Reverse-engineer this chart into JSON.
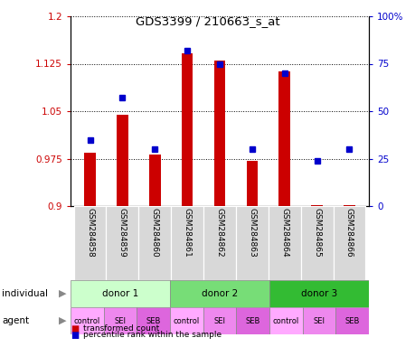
{
  "title": "GDS3399 / 210663_s_at",
  "samples": [
    "GSM284858",
    "GSM284859",
    "GSM284860",
    "GSM284861",
    "GSM284862",
    "GSM284863",
    "GSM284864",
    "GSM284865",
    "GSM284866"
  ],
  "bar_values": [
    0.985,
    1.045,
    0.982,
    1.142,
    1.13,
    0.971,
    1.113,
    0.901,
    0.901
  ],
  "dot_pct": [
    35,
    57,
    30,
    82,
    75,
    30,
    70,
    24,
    30
  ],
  "ylim": [
    0.9,
    1.2
  ],
  "yticks": [
    0.9,
    0.975,
    1.05,
    1.125,
    1.2
  ],
  "ytick_labels": [
    "0.9",
    "0.975",
    "1.05",
    "1.125",
    "1.2"
  ],
  "right_yticks": [
    0,
    25,
    50,
    75,
    100
  ],
  "right_ytick_labels": [
    "0",
    "25",
    "50",
    "75",
    "100%"
  ],
  "bar_color": "#cc0000",
  "dot_color": "#0000cc",
  "bar_bottom": 0.9,
  "individual_labels": [
    "donor 1",
    "donor 2",
    "donor 3"
  ],
  "individual_colors": [
    "#ccffcc",
    "#77dd77",
    "#33bb33"
  ],
  "agent_labels": [
    "control",
    "SEI",
    "SEB",
    "control",
    "SEI",
    "SEB",
    "control",
    "SEI",
    "SEB"
  ],
  "agent_colors": [
    "#ffaaff",
    "#ee88ee",
    "#dd66dd",
    "#ffaaff",
    "#ee88ee",
    "#dd66dd",
    "#ffaaff",
    "#ee88ee",
    "#dd66dd"
  ],
  "legend_bar_color": "#cc0000",
  "legend_dot_color": "#0000cc"
}
